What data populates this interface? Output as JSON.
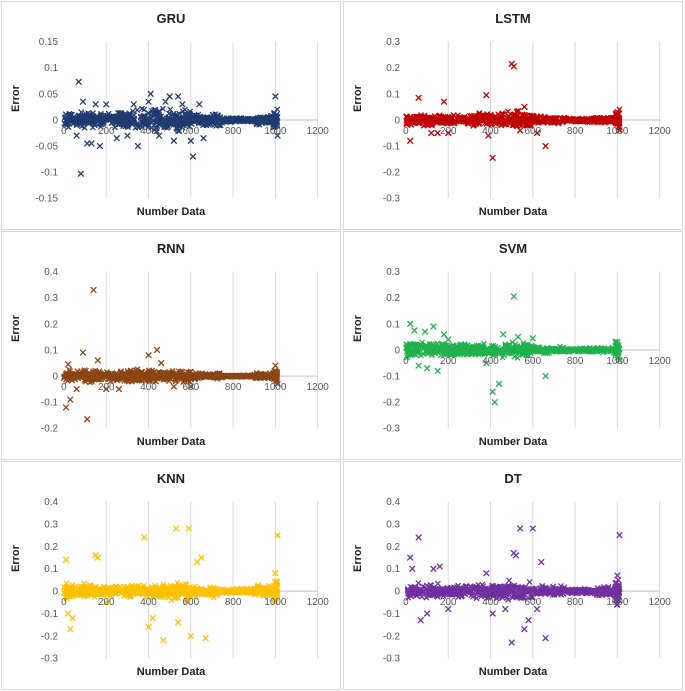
{
  "chart_data": [
    {
      "id": "gru",
      "type": "scatter",
      "title": "GRU",
      "xlabel": "Number Data",
      "ylabel": "Error",
      "color": "#1f3b70",
      "marker": "x",
      "xlim": [
        0,
        1200
      ],
      "ylim": [
        -0.15,
        0.15
      ],
      "yticks": [
        "0.15",
        "0.1",
        "0.05",
        "0",
        "-0.05",
        "-0.1",
        "-0.15"
      ],
      "yticks_v": [
        0.15,
        0.1,
        0.05,
        0,
        -0.05,
        -0.1,
        -0.15
      ],
      "xticks": [
        "0",
        "200",
        "400",
        "600",
        "800",
        "1000",
        "1200"
      ],
      "xticks_v": [
        0,
        200,
        400,
        600,
        800,
        1000,
        1200
      ],
      "band": [
        0.02,
        0.018,
        0.03,
        0.025,
        0.015,
        0.005,
        0.012
      ],
      "outliers": [
        [
          70,
          0.073
        ],
        [
          90,
          0.035
        ],
        [
          60,
          -0.03
        ],
        [
          80,
          -0.103
        ],
        [
          110,
          -0.045
        ],
        [
          130,
          -0.045
        ],
        [
          150,
          0.03
        ],
        [
          170,
          -0.05
        ],
        [
          200,
          0.03
        ],
        [
          250,
          -0.035
        ],
        [
          300,
          -0.03
        ],
        [
          330,
          0.03
        ],
        [
          350,
          -0.05
        ],
        [
          400,
          0.035
        ],
        [
          410,
          0.05
        ],
        [
          450,
          -0.03
        ],
        [
          480,
          0.035
        ],
        [
          500,
          0.045
        ],
        [
          520,
          -0.04
        ],
        [
          540,
          0.045
        ],
        [
          560,
          0.03
        ],
        [
          600,
          -0.04
        ],
        [
          610,
          -0.07
        ],
        [
          640,
          0.03
        ],
        [
          660,
          -0.035
        ],
        [
          1000,
          0.045
        ],
        [
          1010,
          -0.03
        ]
      ],
      "stripe_end": 1010
    },
    {
      "id": "lstm",
      "type": "scatter",
      "title": "LSTM",
      "xlabel": "Number Data",
      "ylabel": "Error",
      "color": "#c00000",
      "marker": "x",
      "xlim": [
        0,
        1200
      ],
      "ylim": [
        -0.3,
        0.3
      ],
      "yticks": [
        "0.3",
        "0.2",
        "0.1",
        "0",
        "-0.1",
        "-0.2",
        "-0.3"
      ],
      "yticks_v": [
        0.3,
        0.2,
        0.1,
        0,
        -0.1,
        -0.2,
        -0.3
      ],
      "xticks": [
        "0",
        "200",
        "400",
        "600",
        "800",
        "1000",
        "1200"
      ],
      "xticks_v": [
        0,
        200,
        400,
        600,
        800,
        1000,
        1200
      ],
      "band": [
        0.03,
        0.025,
        0.035,
        0.04,
        0.02,
        0.01,
        0.02
      ],
      "outliers": [
        [
          20,
          -0.08
        ],
        [
          60,
          0.085
        ],
        [
          120,
          -0.05
        ],
        [
          150,
          -0.05
        ],
        [
          180,
          0.07
        ],
        [
          200,
          -0.05
        ],
        [
          380,
          0.095
        ],
        [
          390,
          -0.06
        ],
        [
          410,
          -0.145
        ],
        [
          500,
          0.215
        ],
        [
          510,
          0.205
        ],
        [
          540,
          -0.04
        ],
        [
          560,
          0.05
        ],
        [
          620,
          -0.05
        ],
        [
          660,
          -0.1
        ],
        [
          1000,
          0.03
        ],
        [
          1010,
          -0.04
        ]
      ],
      "stripe_end": 1010
    },
    {
      "id": "rnn",
      "type": "scatter",
      "title": "RNN",
      "xlabel": "Number Data",
      "ylabel": "Error",
      "color": "#8b4513",
      "marker": "x",
      "xlim": [
        0,
        1200
      ],
      "ylim": [
        -0.2,
        0.4
      ],
      "yticks": [
        "0.4",
        "0.3",
        "0.2",
        "0.1",
        "0",
        "-0.1",
        "-0.2"
      ],
      "yticks_v": [
        0.4,
        0.3,
        0.2,
        0.1,
        0,
        -0.1,
        -0.2
      ],
      "xticks": [
        "0",
        "200",
        "400",
        "600",
        "800",
        "1000",
        "1200"
      ],
      "xticks_v": [
        0,
        200,
        400,
        600,
        800,
        1000,
        1200
      ],
      "band": [
        0.03,
        0.025,
        0.03,
        0.03,
        0.015,
        0.005,
        0.015
      ],
      "outliers": [
        [
          10,
          -0.12
        ],
        [
          20,
          0.045
        ],
        [
          30,
          -0.09
        ],
        [
          60,
          -0.05
        ],
        [
          90,
          0.09
        ],
        [
          110,
          -0.165
        ],
        [
          140,
          0.33
        ],
        [
          160,
          0.06
        ],
        [
          200,
          -0.05
        ],
        [
          260,
          -0.05
        ],
        [
          400,
          0.08
        ],
        [
          440,
          0.1
        ],
        [
          460,
          0.05
        ],
        [
          520,
          -0.04
        ],
        [
          600,
          -0.04
        ],
        [
          1000,
          0.04
        ],
        [
          1010,
          -0.03
        ]
      ],
      "stripe_end": 1010
    },
    {
      "id": "svm",
      "type": "scatter",
      "title": "SVM",
      "xlabel": "Number Data",
      "ylabel": "Error",
      "color": "#21b14c",
      "marker": "x",
      "xlim": [
        0,
        1200
      ],
      "ylim": [
        -0.3,
        0.3
      ],
      "yticks": [
        "0.3",
        "0.2",
        "0.1",
        "0",
        "-0.1",
        "-0.2",
        "-0.3"
      ],
      "yticks_v": [
        0.3,
        0.2,
        0.1,
        0,
        -0.1,
        -0.2,
        -0.3
      ],
      "xticks": [
        "0",
        "200",
        "400",
        "600",
        "800",
        "1000",
        "1200"
      ],
      "xticks_v": [
        0,
        200,
        400,
        600,
        800,
        1000,
        1200
      ],
      "band": [
        0.045,
        0.035,
        0.03,
        0.035,
        0.015,
        0.01,
        0.015
      ],
      "outliers": [
        [
          20,
          0.1
        ],
        [
          40,
          0.075
        ],
        [
          60,
          -0.06
        ],
        [
          90,
          0.07
        ],
        [
          100,
          -0.07
        ],
        [
          130,
          0.09
        ],
        [
          150,
          -0.08
        ],
        [
          180,
          0.06
        ],
        [
          200,
          0.04
        ],
        [
          380,
          -0.05
        ],
        [
          410,
          -0.16
        ],
        [
          420,
          -0.2
        ],
        [
          440,
          -0.13
        ],
        [
          460,
          0.06
        ],
        [
          510,
          0.205
        ],
        [
          530,
          0.05
        ],
        [
          600,
          0.045
        ],
        [
          660,
          -0.1
        ],
        [
          1000,
          0.03
        ],
        [
          1010,
          -0.04
        ]
      ],
      "stripe_end": 1010
    },
    {
      "id": "knn",
      "type": "scatter",
      "title": "KNN",
      "xlabel": "Number Data",
      "ylabel": "Error",
      "color": "#ffc000",
      "marker": "x",
      "xlim": [
        0,
        1200
      ],
      "ylim": [
        -0.3,
        0.4
      ],
      "yticks": [
        "0.4",
        "0.3",
        "0.2",
        "0.1",
        "0",
        "-0.1",
        "-0.2",
        "-0.3"
      ],
      "yticks_v": [
        0.4,
        0.3,
        0.2,
        0.1,
        0,
        -0.1,
        -0.2,
        -0.3
      ],
      "xticks": [
        "0",
        "200",
        "400",
        "600",
        "800",
        "1000",
        "1200"
      ],
      "xticks_v": [
        0,
        200,
        400,
        600,
        800,
        1000,
        1200
      ],
      "band": [
        0.04,
        0.03,
        0.04,
        0.05,
        0.03,
        0.015,
        0.03
      ],
      "outliers": [
        [
          10,
          0.14
        ],
        [
          20,
          -0.1
        ],
        [
          30,
          -0.17
        ],
        [
          40,
          -0.12
        ],
        [
          150,
          0.16
        ],
        [
          160,
          0.15
        ],
        [
          200,
          -0.05
        ],
        [
          380,
          0.24
        ],
        [
          400,
          -0.16
        ],
        [
          420,
          -0.12
        ],
        [
          470,
          -0.22
        ],
        [
          530,
          0.28
        ],
        [
          540,
          -0.14
        ],
        [
          590,
          0.28
        ],
        [
          600,
          -0.2
        ],
        [
          630,
          0.13
        ],
        [
          650,
          0.15
        ],
        [
          670,
          -0.21
        ],
        [
          1000,
          0.08
        ],
        [
          1010,
          0.25
        ],
        [
          1000,
          -0.05
        ]
      ],
      "stripe_end": 1010
    },
    {
      "id": "dt",
      "type": "scatter",
      "title": "DT",
      "xlabel": "Number Data",
      "ylabel": "Error",
      "color": "#7030a0",
      "marker": "x",
      "xlim": [
        0,
        1200
      ],
      "ylim": [
        -0.3,
        0.4
      ],
      "yticks": [
        "0.4",
        "0.3",
        "0.2",
        "0.1",
        "0",
        "-0.1",
        "-0.2",
        "-0.3"
      ],
      "yticks_v": [
        0.4,
        0.3,
        0.2,
        0.1,
        0,
        -0.1,
        -0.2,
        -0.3
      ],
      "xticks": [
        "0",
        "200",
        "400",
        "600",
        "800",
        "1000",
        "1200"
      ],
      "xticks_v": [
        0,
        200,
        400,
        600,
        800,
        1000,
        1200
      ],
      "band": [
        0.04,
        0.035,
        0.04,
        0.05,
        0.03,
        0.015,
        0.03
      ],
      "outliers": [
        [
          20,
          0.15
        ],
        [
          30,
          0.1
        ],
        [
          60,
          0.24
        ],
        [
          70,
          -0.13
        ],
        [
          100,
          -0.1
        ],
        [
          130,
          0.1
        ],
        [
          160,
          0.11
        ],
        [
          200,
          -0.08
        ],
        [
          380,
          0.08
        ],
        [
          410,
          -0.1
        ],
        [
          470,
          -0.08
        ],
        [
          500,
          -0.23
        ],
        [
          510,
          0.17
        ],
        [
          520,
          0.16
        ],
        [
          540,
          0.28
        ],
        [
          560,
          -0.17
        ],
        [
          580,
          -0.13
        ],
        [
          600,
          0.28
        ],
        [
          620,
          -0.08
        ],
        [
          640,
          0.13
        ],
        [
          660,
          -0.21
        ],
        [
          1000,
          0.07
        ],
        [
          1010,
          0.25
        ],
        [
          1000,
          -0.06
        ]
      ],
      "stripe_end": 1010
    }
  ]
}
